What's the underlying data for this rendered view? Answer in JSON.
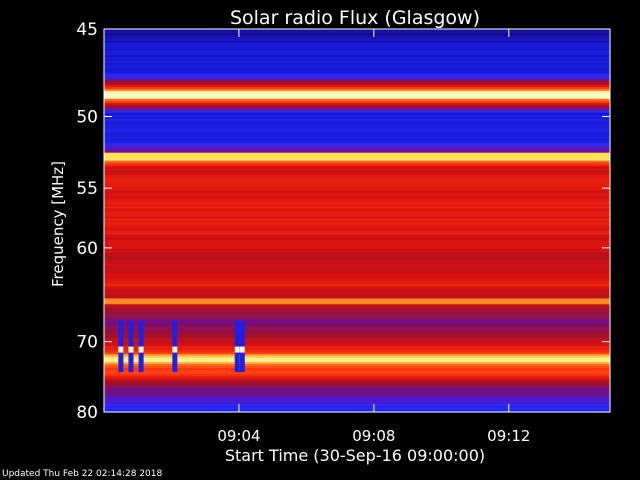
{
  "chart_data": {
    "type": "heatmap",
    "title": "Solar radio Flux (Glasgow)",
    "ylabel": "Frequency [MHz]",
    "xlabel": "Start Time (30-Sep-16 09:00:00)",
    "x_unit": "minutes after 09:00",
    "xlim": [
      0,
      15
    ],
    "ylim": [
      80,
      45
    ],
    "y_scale": "reciprocal",
    "x_ticks": [
      {
        "label": "09:04",
        "value": 4
      },
      {
        "label": "09:08",
        "value": 8
      },
      {
        "label": "09:12",
        "value": 12
      }
    ],
    "y_ticks": [
      45,
      50,
      55,
      60,
      70,
      80
    ],
    "colormap": [
      "#1a0033",
      "#1414c8",
      "#2a2aff",
      "#6a0f9a",
      "#a0102a",
      "#d41010",
      "#ff3010",
      "#ff8a20",
      "#ffe85a",
      "#ffffff"
    ],
    "bands": [
      {
        "freq": 45.0,
        "level": 0.08
      },
      {
        "freq": 46.0,
        "level": 0.14
      },
      {
        "freq": 47.5,
        "level": 0.16
      },
      {
        "freq": 48.7,
        "level": 0.96
      },
      {
        "freq": 49.8,
        "level": 0.15
      },
      {
        "freq": 51.5,
        "level": 0.18
      },
      {
        "freq": 52.3,
        "level": 0.3
      },
      {
        "freq": 52.7,
        "level": 0.88
      },
      {
        "freq": 53.5,
        "level": 0.55
      },
      {
        "freq": 55.0,
        "level": 0.58
      },
      {
        "freq": 57.0,
        "level": 0.6
      },
      {
        "freq": 59.0,
        "level": 0.57
      },
      {
        "freq": 61.5,
        "level": 0.52
      },
      {
        "freq": 63.5,
        "level": 0.62
      },
      {
        "freq": 65.0,
        "level": 0.5
      },
      {
        "freq": 65.3,
        "level": 0.78
      },
      {
        "freq": 66.0,
        "level": 0.45
      },
      {
        "freq": 67.5,
        "level": 0.36
      },
      {
        "freq": 69.0,
        "level": 0.46
      },
      {
        "freq": 71.0,
        "level": 0.6
      },
      {
        "freq": 72.3,
        "level": 0.92
      },
      {
        "freq": 73.5,
        "level": 0.62
      },
      {
        "freq": 74.0,
        "level": 0.72
      },
      {
        "freq": 75.5,
        "level": 0.42
      },
      {
        "freq": 78.0,
        "level": 0.28
      },
      {
        "freq": 80.0,
        "level": 0.15
      }
    ],
    "events": [
      {
        "t": 0.5,
        "f_from": 67.5,
        "f_to": 74.0
      },
      {
        "t": 0.8,
        "f_from": 67.5,
        "f_to": 74.0
      },
      {
        "t": 1.1,
        "f_from": 67.5,
        "f_to": 74.0
      },
      {
        "t": 2.1,
        "f_from": 67.5,
        "f_to": 74.0
      },
      {
        "t": 3.95,
        "f_from": 67.5,
        "f_to": 74.0
      },
      {
        "t": 4.1,
        "f_from": 67.5,
        "f_to": 74.0
      }
    ],
    "grid": false,
    "legend": "none"
  },
  "footer": {
    "updated": "Updated Thu Feb 22 02:14:28 2018"
  }
}
